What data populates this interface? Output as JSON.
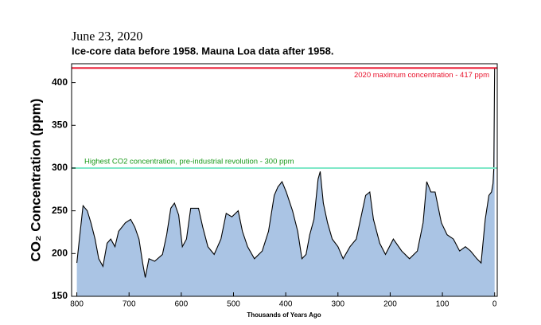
{
  "chart_data": {
    "type": "area",
    "date": "June 23, 2020",
    "title": "Ice-core data before 1958. Mauna Loa data after 1958.",
    "ylabel": "CO₂ Concentration (ppm)",
    "xlabel": "Thousands of Years Ago",
    "xlim": [
      810,
      -5
    ],
    "ylim": [
      150,
      422
    ],
    "xticks": [
      800,
      700,
      600,
      500,
      400,
      300,
      200,
      100,
      0
    ],
    "yticks": [
      150,
      200,
      250,
      300,
      350,
      400
    ],
    "fill_color": "#aac4e4",
    "line_color": "#000000",
    "reference_lines": [
      {
        "value": 417,
        "label": "2020 maximum concentration - 417 ppm",
        "color": "#e8102a"
      },
      {
        "value": 300,
        "label": "Highest CO2 concentration, pre-industrial revolution - 300 ppm",
        "color": "#7fe8c8",
        "label_color": "#1a9a1a"
      }
    ],
    "x": [
      800,
      795,
      788,
      780,
      773,
      765,
      758,
      750,
      742,
      735,
      727,
      720,
      707,
      697,
      689,
      681,
      674,
      669,
      662,
      651,
      636,
      628,
      620,
      613,
      605,
      598,
      590,
      582,
      567,
      559,
      549,
      537,
      524,
      514,
      503,
      491,
      483,
      473,
      460,
      445,
      433,
      422,
      415,
      407,
      399,
      387,
      377,
      369,
      361,
      354,
      346,
      338,
      334,
      328,
      320,
      311,
      300,
      290,
      277,
      265,
      255,
      247,
      239,
      232,
      220,
      209,
      194,
      178,
      163,
      148,
      137,
      130,
      122,
      114,
      102,
      91,
      79,
      67,
      56,
      46,
      34,
      26,
      18,
      11,
      6,
      3,
      1.5,
      0
    ],
    "values": [
      189,
      217,
      256,
      250,
      236,
      217,
      194,
      185,
      212,
      217,
      208,
      226,
      236,
      240,
      231,
      217,
      189,
      172,
      194,
      191,
      199,
      222,
      253,
      259,
      245,
      208,
      217,
      253,
      253,
      231,
      208,
      199,
      217,
      247,
      243,
      250,
      226,
      208,
      194,
      203,
      226,
      268,
      278,
      284,
      272,
      250,
      226,
      194,
      199,
      222,
      240,
      287,
      296,
      259,
      236,
      217,
      208,
      194,
      208,
      217,
      245,
      268,
      272,
      240,
      212,
      199,
      217,
      203,
      194,
      203,
      236,
      284,
      272,
      272,
      236,
      222,
      217,
      203,
      208,
      203,
      194,
      189,
      240,
      268,
      272,
      282,
      300,
      417
    ]
  }
}
